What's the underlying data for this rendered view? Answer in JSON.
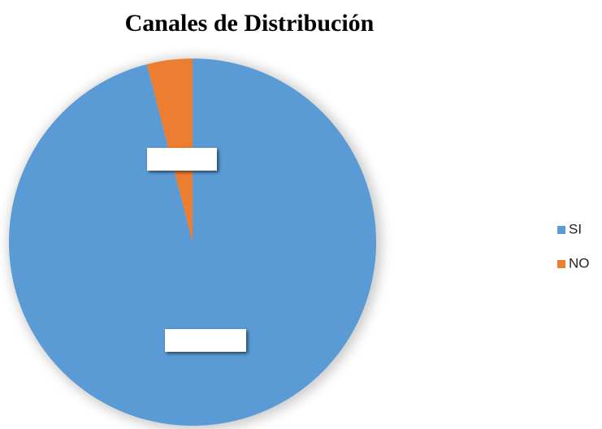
{
  "chart_data": {
    "type": "pie",
    "title": "Canales de Distribución",
    "categories": [
      "SI",
      "NO"
    ],
    "values": [
      96,
      4
    ],
    "colors": [
      "#5b9bd5",
      "#ed7d31"
    ],
    "legend": "right"
  }
}
